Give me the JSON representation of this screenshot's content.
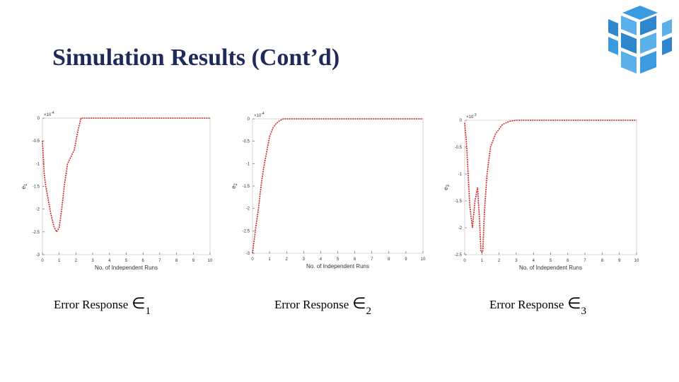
{
  "title": "Simulation Results (Cont’d)",
  "chart_data": [
    {
      "type": "line",
      "multiplier": "×10",
      "exponent": "-4",
      "xlabel": "No. of Independent Runs",
      "ylabel": "e",
      "ylabel_subscript": "1",
      "caption": {
        "text": "Error Response",
        "symbol": "∈",
        "subscript": "1"
      },
      "xlim": [
        0,
        10
      ],
      "xticks": [
        0,
        1,
        2,
        3,
        4,
        5,
        6,
        7,
        8,
        9,
        10
      ],
      "ylim": [
        -3,
        0
      ],
      "yticks": [
        0,
        -0.5,
        -1,
        -1.5,
        -2,
        -2.5,
        -3
      ],
      "color": "#d42020",
      "x": [
        0,
        0.1,
        0.2,
        0.35,
        0.5,
        0.7,
        0.85,
        1.0,
        1.15,
        1.3,
        1.5,
        1.7,
        1.9,
        2.1,
        2.3,
        2.5,
        4,
        6,
        8,
        10
      ],
      "values": [
        -0.5,
        -1.2,
        -1.5,
        -1.8,
        -2.1,
        -2.4,
        -2.5,
        -2.4,
        -2.0,
        -1.5,
        -1.0,
        -0.85,
        -0.7,
        -0.3,
        0,
        0,
        0,
        0,
        0,
        0
      ]
    },
    {
      "type": "line",
      "multiplier": "×10",
      "exponent": "-4",
      "xlabel": "No. of Independent Runs",
      "ylabel": "e",
      "ylabel_subscript": "2",
      "caption": {
        "text": "Error Response",
        "symbol": "∈",
        "subscript": "2"
      },
      "xlim": [
        0,
        10
      ],
      "xticks": [
        0,
        1,
        2,
        3,
        4,
        5,
        6,
        7,
        8,
        9,
        10
      ],
      "ylim": [
        -3,
        0
      ],
      "yticks": [
        0,
        -0.5,
        -1,
        -1.5,
        -2,
        -2.5,
        -3
      ],
      "color": "#d42020",
      "x": [
        0,
        0.1,
        0.2,
        0.35,
        0.5,
        0.65,
        0.8,
        1.0,
        1.2,
        1.4,
        1.6,
        1.8,
        2.2,
        4,
        6,
        8,
        10
      ],
      "values": [
        -3,
        -2.7,
        -2.4,
        -2.0,
        -1.5,
        -1.1,
        -0.8,
        -0.4,
        -0.2,
        -0.1,
        -0.04,
        0,
        0,
        0,
        0,
        0,
        0
      ]
    },
    {
      "type": "line",
      "multiplier": "×10",
      "exponent": "-3",
      "xlabel": "No. of Independent Runs",
      "ylabel": "e",
      "ylabel_subscript": "3",
      "caption": {
        "text": "Error Response",
        "symbol": "∈",
        "subscript": "3"
      },
      "xlim": [
        0,
        10
      ],
      "xticks": [
        0,
        1,
        2,
        3,
        4,
        5,
        6,
        7,
        8,
        9,
        10
      ],
      "ylim": [
        -2.5,
        0
      ],
      "yticks": [
        0,
        -0.5,
        -1,
        -1.5,
        -2,
        -2.5
      ],
      "color": "#d42020",
      "x": [
        0,
        0.1,
        0.2,
        0.3,
        0.45,
        0.6,
        0.75,
        0.85,
        0.95,
        1.05,
        1.15,
        1.3,
        1.5,
        1.8,
        2.2,
        2.6,
        3,
        5,
        7,
        10
      ],
      "values": [
        -0.05,
        -0.4,
        -1.0,
        -1.6,
        -2.0,
        -1.5,
        -1.25,
        -1.8,
        -2.45,
        -2.45,
        -1.7,
        -1.0,
        -0.5,
        -0.25,
        -0.08,
        -0.02,
        0,
        0,
        0,
        0
      ]
    }
  ]
}
